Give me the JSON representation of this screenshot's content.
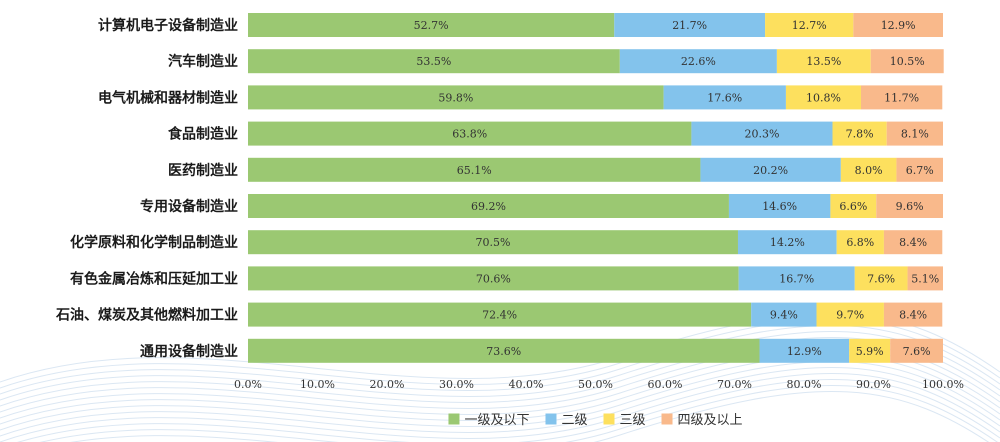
{
  "chart_data": {
    "type": "bar",
    "orientation": "horizontal",
    "stacked": true,
    "categories": [
      "计算机电子设备制造业",
      "汽车制造业",
      "电气机械和器材制造业",
      "食品制造业",
      "医药制造业",
      "专用设备制造业",
      "化学原料和化学制品制造业",
      "有色金属冶炼和压延加工业",
      "石油、煤炭及其他燃料加工业",
      "通用设备制造业"
    ],
    "series": [
      {
        "name": "一级及以下",
        "color": "#9bc872",
        "values": [
          52.7,
          53.5,
          59.8,
          63.8,
          65.1,
          69.2,
          70.5,
          70.6,
          72.4,
          73.6
        ]
      },
      {
        "name": "二级",
        "color": "#83c3ec",
        "values": [
          21.7,
          22.6,
          17.6,
          20.3,
          20.2,
          14.6,
          14.2,
          16.7,
          9.4,
          12.9
        ]
      },
      {
        "name": "三级",
        "color": "#fde05e",
        "values": [
          12.7,
          13.5,
          10.8,
          7.8,
          8.0,
          6.6,
          6.8,
          7.6,
          9.7,
          5.9
        ]
      },
      {
        "name": "四级及以上",
        "color": "#f9b98b",
        "values": [
          12.9,
          10.5,
          11.7,
          8.1,
          6.7,
          9.6,
          8.4,
          5.1,
          8.4,
          7.6
        ]
      }
    ],
    "xlim": [
      0,
      100
    ],
    "xticks": [
      "0.0%",
      "10.0%",
      "20.0%",
      "30.0%",
      "40.0%",
      "50.0%",
      "60.0%",
      "70.0%",
      "80.0%",
      "90.0%",
      "100.0%"
    ],
    "value_format": "percent_1dp",
    "legend_position": "bottom",
    "grid": false
  }
}
